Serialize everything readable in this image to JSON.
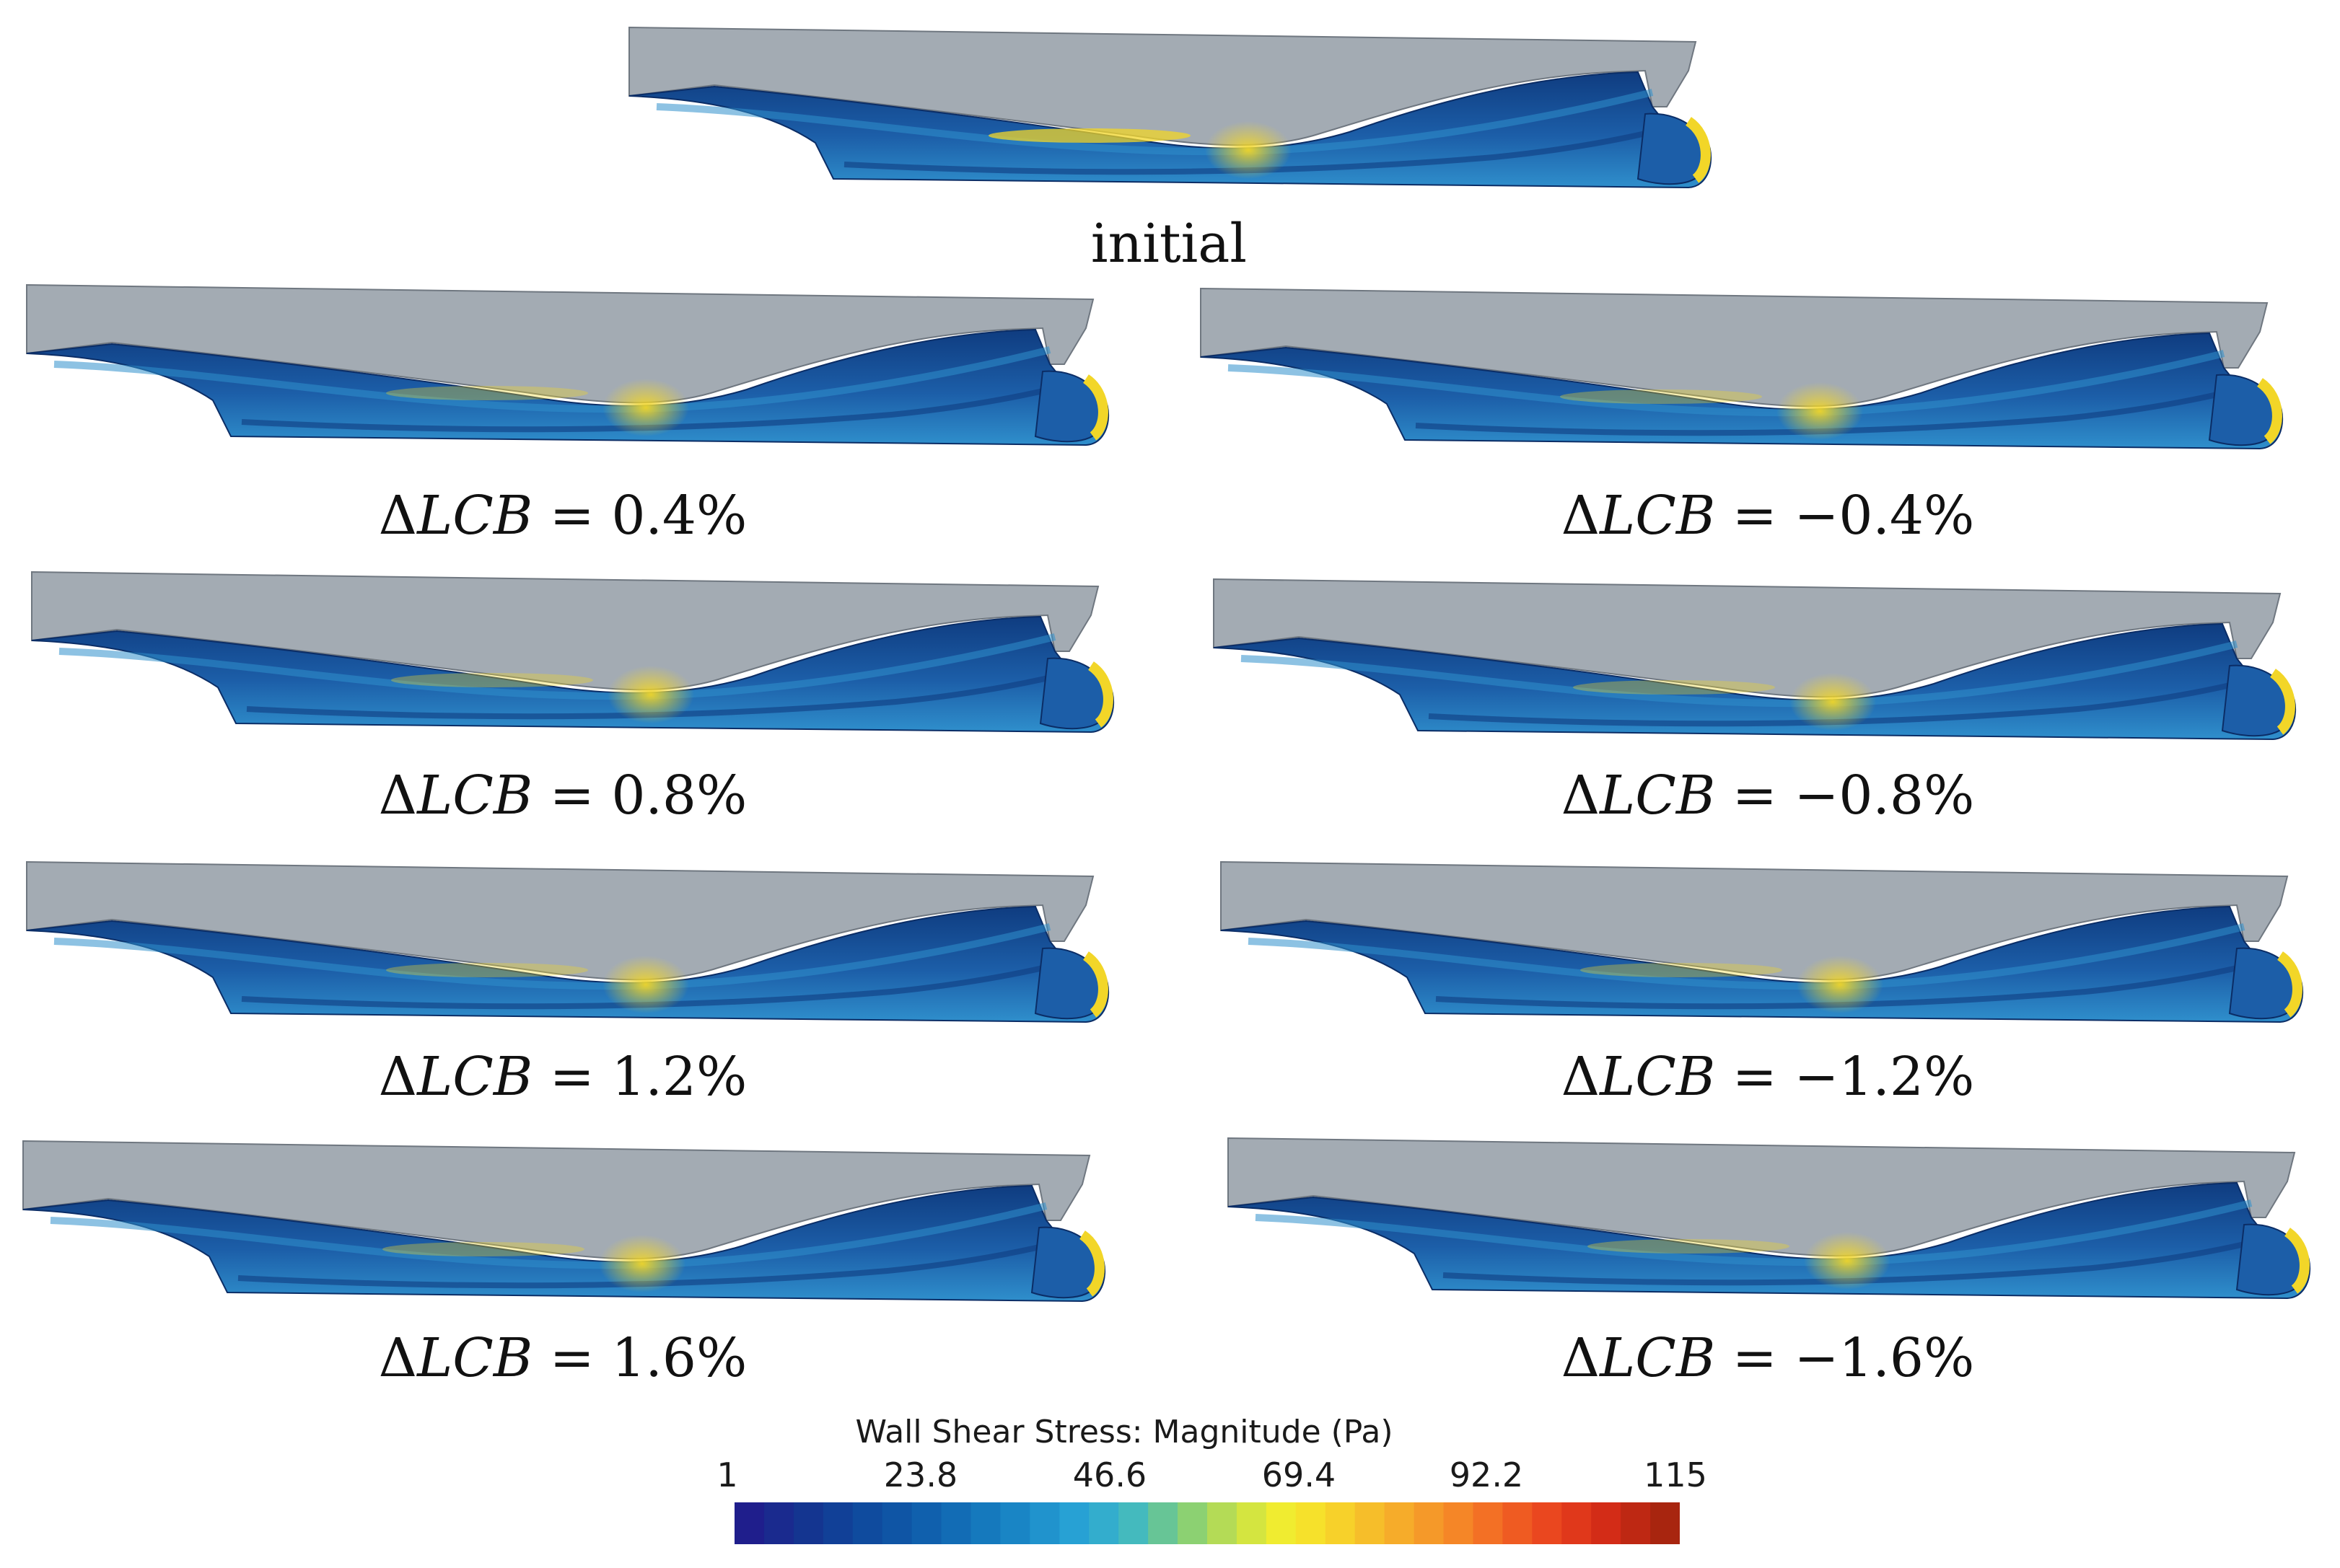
{
  "panels": [
    {
      "id": "initial",
      "caption": "initial",
      "lcb": null
    },
    {
      "id": "p04",
      "caption": "= 0.4%",
      "lcb": 0.4
    },
    {
      "id": "m04",
      "caption": "= −0.4%",
      "lcb": -0.4
    },
    {
      "id": "p08",
      "caption": "= 0.8%",
      "lcb": 0.8
    },
    {
      "id": "m08",
      "caption": "= −0.8%",
      "lcb": -0.8
    },
    {
      "id": "p12",
      "caption": "= 1.2%",
      "lcb": 1.2
    },
    {
      "id": "m12",
      "caption": "= −1.2%",
      "lcb": -1.2
    },
    {
      "id": "p16",
      "caption": "= 1.6%",
      "lcb": 1.6
    },
    {
      "id": "m16",
      "caption": "= −1.6%",
      "lcb": -1.6
    }
  ],
  "caption_prefix": {
    "delta": "Δ",
    "var": "LCB"
  },
  "legend": {
    "title": "Wall Shear Stress: Magnitude (Pa)",
    "ticks": [
      "1",
      "23.8",
      "46.6",
      "69.4",
      "92.2",
      "115"
    ],
    "min": 1,
    "max": 115,
    "colors": [
      "#1f1e8c",
      "#15338f",
      "#0f479b",
      "#0f5aa8",
      "#1270b8",
      "#1a86c6",
      "#26a0d4",
      "#3cb7c8",
      "#7ccc7e",
      "#c4e04a",
      "#f6ee2c",
      "#f7d02a",
      "#f6ae2a",
      "#f58c28",
      "#f26524",
      "#e8401e",
      "#d12a16",
      "#a8250f"
    ]
  },
  "colors": {
    "hull_above": "#a3abb3",
    "hull_main": "#1c5ea8",
    "hull_dark": "#0f3c80",
    "hull_light": "#2f8fcc",
    "high_stress": "#f2d628"
  }
}
